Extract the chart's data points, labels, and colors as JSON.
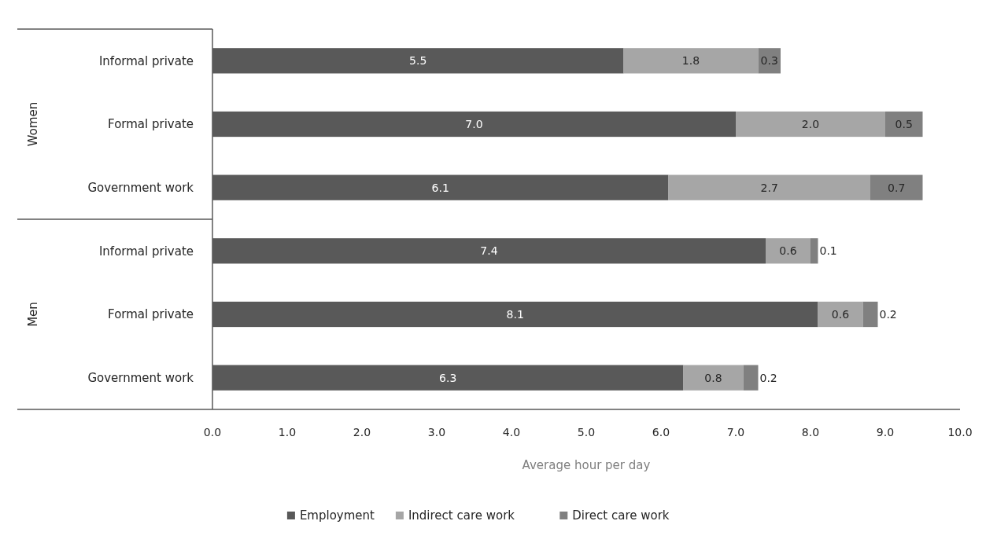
{
  "chart_data": {
    "type": "bar",
    "orientation": "horizontal",
    "stacked": true,
    "categories": [
      "Informal private",
      "Formal private",
      "Government work",
      "Informal private",
      "Formal private",
      "Government work"
    ],
    "series": [
      {
        "name": "Employment",
        "color": "#595959",
        "values": [
          5.5,
          7.0,
          6.1,
          7.4,
          8.1,
          6.3
        ],
        "value_labels": [
          "5.5",
          "7.0",
          "6.1",
          "7.4",
          "8.1",
          "6.3"
        ]
      },
      {
        "name": "Indirect care work",
        "color": "#a6a6a6",
        "values": [
          1.8,
          2.0,
          2.7,
          0.6,
          0.6,
          0.8
        ],
        "value_labels": [
          "1.8",
          "2.0",
          "2.7",
          "0.6",
          "0.6",
          "0.8"
        ]
      },
      {
        "name": "Direct care work",
        "color": "#808080",
        "values": [
          0.3,
          0.5,
          0.7,
          0.1,
          0.2,
          0.2
        ],
        "value_labels": [
          "0.3",
          "0.5",
          "0.7",
          "0.1",
          "0.2",
          "0.2"
        ]
      }
    ],
    "xlim": [
      0,
      10
    ],
    "xticks": [
      {
        "value": 0,
        "label": "0.0"
      },
      {
        "value": 1,
        "label": "1.0"
      },
      {
        "value": 2,
        "label": "2.0"
      },
      {
        "value": 3,
        "label": "3.0"
      },
      {
        "value": 4,
        "label": "4.0"
      },
      {
        "value": 5,
        "label": "5.0"
      },
      {
        "value": 6,
        "label": "6.0"
      },
      {
        "value": 7,
        "label": "7.0"
      },
      {
        "value": 8,
        "label": "8.0"
      },
      {
        "value": 9,
        "label": "9.0"
      },
      {
        "value": 10,
        "label": "10.0"
      }
    ],
    "xlabel": "Average hour per day",
    "annotations": [
      "Women",
      "Men"
    ],
    "legend": "bottom"
  }
}
